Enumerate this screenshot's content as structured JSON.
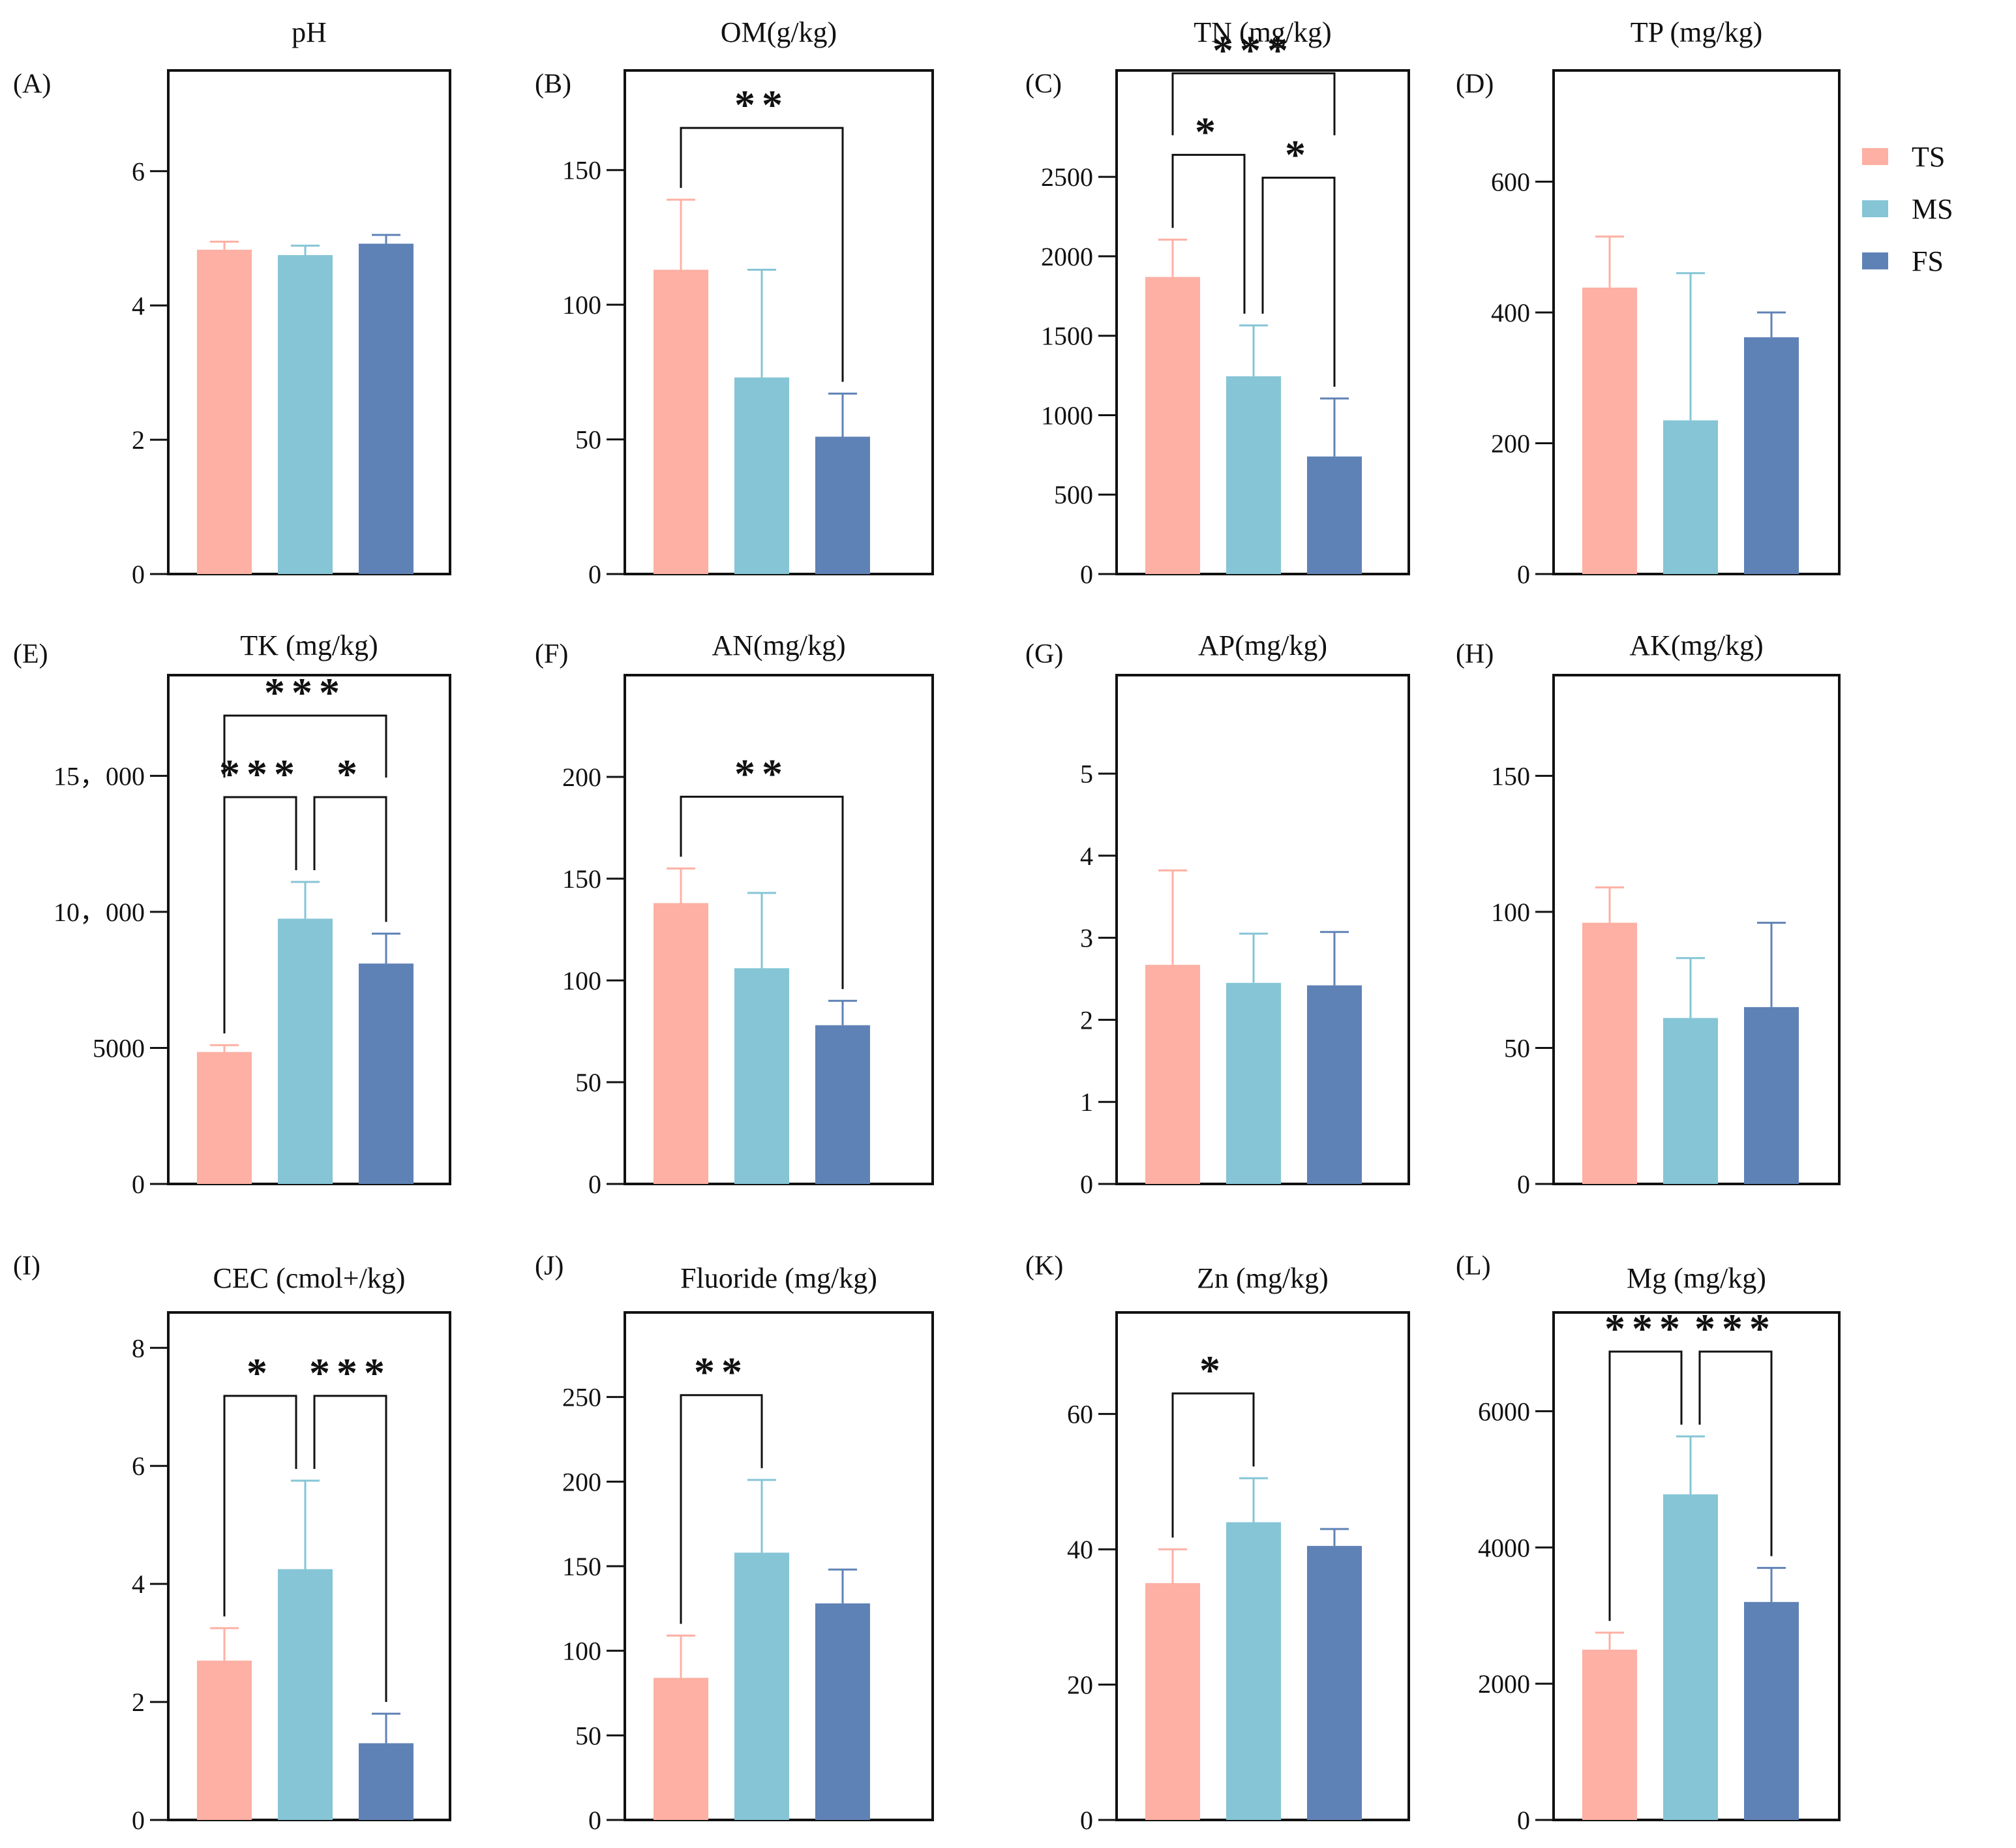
{
  "legend": [
    {
      "name": "TS",
      "color": "#FDB0A3"
    },
    {
      "name": "MS",
      "color": "#85C5D6"
    },
    {
      "name": "FS",
      "color": "#5F82B6"
    }
  ],
  "chart_data": [
    {
      "type": "bar",
      "panel": "(A)",
      "title": "pH",
      "categories": [
        "TS",
        "MS",
        "FS"
      ],
      "values": [
        4.83,
        4.75,
        4.92
      ],
      "errors": [
        0.12,
        0.14,
        0.13
      ],
      "ylim": [
        0,
        7.5
      ],
      "yticks": [
        0,
        2,
        4,
        6
      ],
      "ytick_labels": [
        "0",
        "2",
        "4",
        "6"
      ],
      "significance": []
    },
    {
      "type": "bar",
      "panel": "(B)",
      "title": "OM(g/kg)",
      "categories": [
        "TS",
        "MS",
        "FS"
      ],
      "values": [
        113,
        73,
        51
      ],
      "errors": [
        26,
        40,
        16
      ],
      "ylim": [
        0,
        187
      ],
      "yticks": [
        0,
        50,
        100,
        150
      ],
      "ytick_labels": [
        "0",
        "50",
        "100",
        "150"
      ],
      "significance": [
        {
          "from": 0,
          "to": 2,
          "label": "**"
        }
      ]
    },
    {
      "type": "bar",
      "panel": "(C)",
      "title": "TN (mg/kg)",
      "categories": [
        "TS",
        "MS",
        "FS"
      ],
      "values": [
        1870,
        1245,
        740
      ],
      "errors": [
        235,
        320,
        365
      ],
      "ylim": [
        0,
        3170
      ],
      "yticks": [
        0,
        500,
        1000,
        1500,
        2000,
        2500
      ],
      "ytick_labels": [
        "0",
        "500",
        "1000",
        "1500",
        "2000",
        "2500"
      ],
      "significance": [
        {
          "from": 0,
          "to": 1,
          "label": "*"
        },
        {
          "from": 1,
          "to": 2,
          "label": "*"
        },
        {
          "from": 0,
          "to": 2,
          "label": "***"
        }
      ]
    },
    {
      "type": "bar",
      "panel": "(D)",
      "title": "TP (mg/kg)",
      "categories": [
        "TS",
        "MS",
        "FS"
      ],
      "values": [
        438,
        235,
        362
      ],
      "errors": [
        78,
        225,
        38
      ],
      "ylim": [
        0,
        770
      ],
      "yticks": [
        0,
        200,
        400,
        600
      ],
      "ytick_labels": [
        "0",
        "200",
        "400",
        "600"
      ],
      "significance": []
    },
    {
      "type": "bar",
      "panel": "(E)",
      "title": "TK (mg/kg)",
      "categories": [
        "TS",
        "MS",
        "FS"
      ],
      "values": [
        4850,
        9750,
        8100
      ],
      "errors": [
        250,
        1350,
        1100
      ],
      "ylim": [
        0,
        18700
      ],
      "yticks": [
        0,
        5000,
        10000,
        15000
      ],
      "ytick_labels": [
        "0",
        "5000",
        "10，000",
        "15，000"
      ],
      "significance": [
        {
          "from": 0,
          "to": 1,
          "label": "***"
        },
        {
          "from": 1,
          "to": 2,
          "label": "*"
        },
        {
          "from": 0,
          "to": 2,
          "label": "***"
        }
      ]
    },
    {
      "type": "bar",
      "panel": "(F)",
      "title": "AN(mg/kg)",
      "categories": [
        "TS",
        "MS",
        "FS"
      ],
      "values": [
        138,
        106,
        78
      ],
      "errors": [
        17,
        37,
        12
      ],
      "ylim": [
        0,
        250
      ],
      "yticks": [
        0,
        50,
        100,
        150,
        200
      ],
      "ytick_labels": [
        "0",
        "50",
        "100",
        "150",
        "200"
      ],
      "significance": [
        {
          "from": 0,
          "to": 2,
          "label": "**"
        }
      ]
    },
    {
      "type": "bar",
      "panel": "(G)",
      "title": "AP(mg/kg)",
      "categories": [
        "TS",
        "MS",
        "FS"
      ],
      "values": [
        2.67,
        2.45,
        2.42
      ],
      "errors": [
        1.15,
        0.6,
        0.65
      ],
      "ylim": [
        0,
        6.2
      ],
      "yticks": [
        0,
        1,
        2,
        3,
        4,
        5
      ],
      "ytick_labels": [
        "0",
        "1",
        "2",
        "3",
        "4",
        "5"
      ],
      "significance": []
    },
    {
      "type": "bar",
      "panel": "(H)",
      "title": "AK(mg/kg)",
      "categories": [
        "TS",
        "MS",
        "FS"
      ],
      "values": [
        96,
        61,
        65
      ],
      "errors": [
        13,
        22,
        31
      ],
      "ylim": [
        0,
        187
      ],
      "yticks": [
        0,
        50,
        100,
        150
      ],
      "ytick_labels": [
        "0",
        "50",
        "100",
        "150"
      ],
      "significance": []
    },
    {
      "type": "bar",
      "panel": "(I)",
      "title": "CEC (cmol+/kg)",
      "categories": [
        "TS",
        "MS",
        "FS"
      ],
      "values": [
        2.7,
        4.25,
        1.3
      ],
      "errors": [
        0.55,
        1.5,
        0.5
      ],
      "ylim": [
        0,
        8.6
      ],
      "yticks": [
        0,
        2,
        4,
        6,
        8
      ],
      "ytick_labels": [
        "0",
        "2",
        "4",
        "6",
        "8"
      ],
      "significance": [
        {
          "from": 0,
          "to": 1,
          "label": "*"
        },
        {
          "from": 1,
          "to": 2,
          "label": "***"
        }
      ]
    },
    {
      "type": "bar",
      "panel": "(J)",
      "title": "Fluoride (mg/kg)",
      "categories": [
        "TS",
        "MS",
        "FS"
      ],
      "values": [
        84,
        158,
        128
      ],
      "errors": [
        25,
        43,
        20
      ],
      "ylim": [
        0,
        300
      ],
      "yticks": [
        0,
        50,
        100,
        150,
        200,
        250
      ],
      "ytick_labels": [
        "0",
        "50",
        "100",
        "150",
        "200",
        "250"
      ],
      "significance": [
        {
          "from": 0,
          "to": 1,
          "label": "**"
        }
      ]
    },
    {
      "type": "bar",
      "panel": "(K)",
      "title": "Zn (mg/kg)",
      "categories": [
        "TS",
        "MS",
        "FS"
      ],
      "values": [
        35,
        44,
        40.5
      ],
      "errors": [
        5,
        6.5,
        2.5
      ],
      "ylim": [
        0,
        75
      ],
      "yticks": [
        0,
        20,
        40,
        60
      ],
      "ytick_labels": [
        "0",
        "20",
        "40",
        "60"
      ],
      "significance": [
        {
          "from": 0,
          "to": 1,
          "label": "*"
        }
      ]
    },
    {
      "type": "bar",
      "panel": "(L)",
      "title": "Mg (mg/kg)",
      "categories": [
        "TS",
        "MS",
        "FS"
      ],
      "values": [
        2500,
        4780,
        3200
      ],
      "errors": [
        250,
        850,
        500
      ],
      "ylim": [
        0,
        7450
      ],
      "yticks": [
        0,
        2000,
        4000,
        6000
      ],
      "ytick_labels": [
        "0",
        "2000",
        "4000",
        "6000"
      ],
      "significance": [
        {
          "from": 0,
          "to": 1,
          "label": "***"
        },
        {
          "from": 1,
          "to": 2,
          "label": "***"
        }
      ]
    }
  ]
}
